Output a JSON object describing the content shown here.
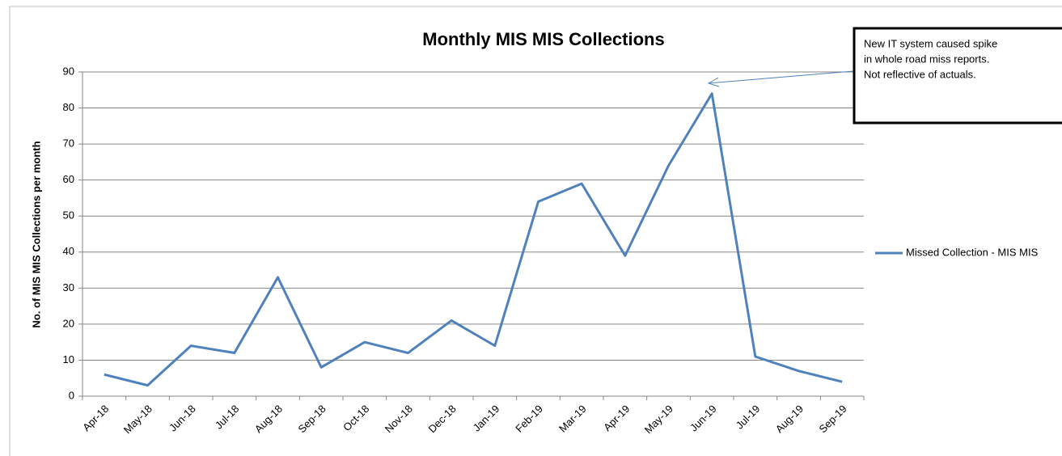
{
  "chart_data": {
    "type": "line",
    "title": "Monthly MIS MIS Collections",
    "y_label": "No. of MIS MIS Collections per month",
    "categories": [
      "Apr-18",
      "May-18",
      "Jun-18",
      "Jul-18",
      "Aug-18",
      "Sep-18",
      "Oct-18",
      "Nov-18",
      "Dec-18",
      "Jan-19",
      "Feb-19",
      "Mar-19",
      "Apr-19",
      "May-19",
      "Jun-19",
      "Jul-19",
      "Aug-19",
      "Sep-19"
    ],
    "series": [
      {
        "name": "Missed Collection - MIS MIS",
        "color": "#4f81bd",
        "values": [
          6,
          3,
          14,
          12,
          33,
          8,
          15,
          12,
          21,
          14,
          54,
          59,
          39,
          64,
          84,
          11,
          7,
          4
        ]
      }
    ],
    "ylim": [
      0,
      90
    ],
    "yticks": [
      0,
      10,
      20,
      30,
      40,
      50,
      60,
      70,
      80,
      90
    ],
    "grid": true,
    "legend": "right",
    "annotation": [
      "New IT system caused spike",
      "in whole road miss reports.",
      "Not reflective of actuals."
    ]
  }
}
